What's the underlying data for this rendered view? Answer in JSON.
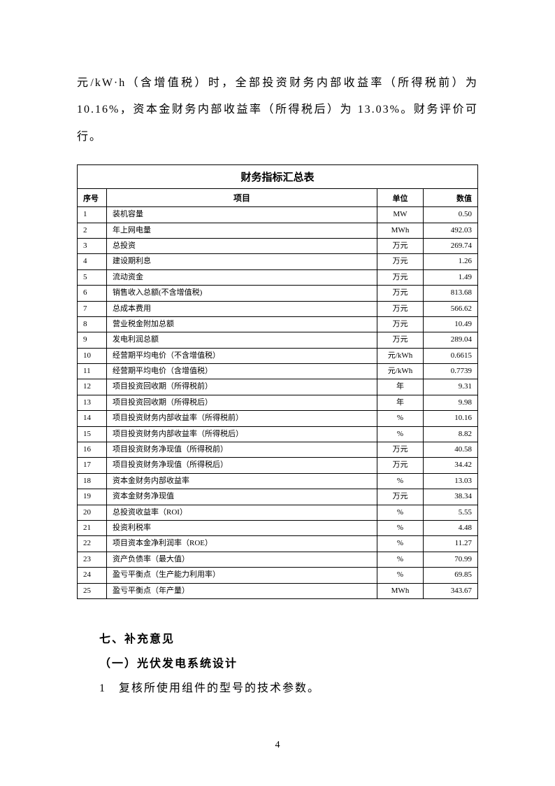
{
  "paragraph": "元/kW·h（含增值税）时，全部投资财务内部收益率（所得税前）为 10.16%，资本金财务内部收益率（所得税后）为 13.03%。财务评价可行。",
  "table": {
    "title": "财务指标汇总表",
    "headers": {
      "seq": "序号",
      "item": "项目",
      "unit": "单位",
      "value": "数值"
    },
    "rows": [
      {
        "seq": "1",
        "item": "装机容量",
        "unit": "MW",
        "value": "0.50"
      },
      {
        "seq": "2",
        "item": "年上网电量",
        "unit": "MWh",
        "value": "492.03"
      },
      {
        "seq": "3",
        "item": "总投资",
        "unit": "万元",
        "value": "269.74"
      },
      {
        "seq": "4",
        "item": "建设期利息",
        "unit": "万元",
        "value": "1.26"
      },
      {
        "seq": "5",
        "item": "流动资金",
        "unit": "万元",
        "value": "1.49"
      },
      {
        "seq": "6",
        "item": "销售收入总额(不含增值税)",
        "unit": "万元",
        "value": "813.68"
      },
      {
        "seq": "7",
        "item": "总成本费用",
        "unit": "万元",
        "value": "566.62"
      },
      {
        "seq": "8",
        "item": "营业税金附加总额",
        "unit": "万元",
        "value": "10.49"
      },
      {
        "seq": "9",
        "item": "发电利润总额",
        "unit": "万元",
        "value": "289.04"
      },
      {
        "seq": "10",
        "item": "经营期平均电价（不含增值税）",
        "unit": "元/kWh",
        "value": "0.6615"
      },
      {
        "seq": "11",
        "item": "经营期平均电价（含增值税）",
        "unit": "元/kWh",
        "value": "0.7739"
      },
      {
        "seq": "12",
        "item": "项目投资回收期（所得税前）",
        "unit": "年",
        "value": "9.31"
      },
      {
        "seq": "13",
        "item": "项目投资回收期（所得税后）",
        "unit": "年",
        "value": "9.98"
      },
      {
        "seq": "14",
        "item": "项目投资财务内部收益率（所得税前）",
        "unit": "%",
        "value": "10.16"
      },
      {
        "seq": "15",
        "item": "项目投资财务内部收益率（所得税后）",
        "unit": "%",
        "value": "8.82"
      },
      {
        "seq": "16",
        "item": "项目投资财务净现值（所得税前）",
        "unit": "万元",
        "value": "40.58"
      },
      {
        "seq": "17",
        "item": "项目投资财务净现值（所得税后）",
        "unit": "万元",
        "value": "34.42"
      },
      {
        "seq": "18",
        "item": "资本金财务内部收益率",
        "unit": "%",
        "value": "13.03"
      },
      {
        "seq": "19",
        "item": "资本金财务净现值",
        "unit": "万元",
        "value": "38.34"
      },
      {
        "seq": "20",
        "item": "总投资收益率（ROI）",
        "unit": "%",
        "value": "5.55"
      },
      {
        "seq": "21",
        "item": "投资利税率",
        "unit": "%",
        "value": "4.48"
      },
      {
        "seq": "22",
        "item": "项目资本金净利润率（ROE）",
        "unit": "%",
        "value": "11.27"
      },
      {
        "seq": "23",
        "item": "资产负债率（最大值）",
        "unit": "%",
        "value": "70.99"
      },
      {
        "seq": "24",
        "item": "盈亏平衡点（生产能力利用率）",
        "unit": "%",
        "value": "69.85"
      },
      {
        "seq": "25",
        "item": "盈亏平衡点（年产量）",
        "unit": "MWh",
        "value": "343.67"
      }
    ]
  },
  "section": {
    "heading": "七、补充意见",
    "sub": "（一）光伏发电系统设计",
    "line1": "1　复核所使用组件的型号的技术参数。"
  },
  "pageNumber": "4"
}
